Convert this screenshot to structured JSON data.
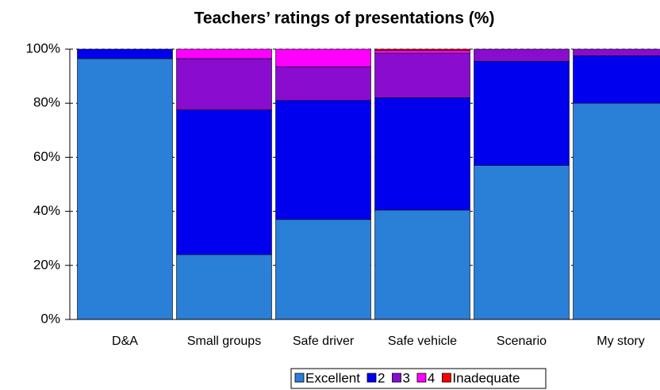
{
  "chart_data": {
    "type": "stacked_bar",
    "title": "Teachers’ ratings of presentations (%)",
    "categories": [
      "D&A",
      "Small groups",
      "Safe driver",
      "Safe vehicle",
      "Scenario",
      "My story"
    ],
    "series": [
      {
        "name": "Excellent",
        "color": "#2a7fd6",
        "values": [
          96.5,
          24,
          37,
          40.5,
          57,
          80
        ]
      },
      {
        "name": "2",
        "color": "#0000ee",
        "values": [
          3.5,
          53.5,
          44,
          41.5,
          38.5,
          17.5
        ]
      },
      {
        "name": "3",
        "color": "#8a0ccf",
        "values": [
          0,
          19,
          12.5,
          16.5,
          4.5,
          2.5
        ]
      },
      {
        "name": "4",
        "color": "#ff00ff",
        "values": [
          0,
          3.5,
          6.5,
          1,
          0,
          0
        ]
      },
      {
        "name": "Inadequate",
        "color": "#ff0000",
        "values": [
          0,
          0,
          0,
          0.5,
          0,
          0
        ]
      }
    ],
    "ylim": [
      0,
      100
    ],
    "yticks": [
      {
        "value": 0,
        "label": "0%"
      },
      {
        "value": 20,
        "label": "20%"
      },
      {
        "value": 40,
        "label": "40%"
      },
      {
        "value": 60,
        "label": "60%"
      },
      {
        "value": 80,
        "label": "80%"
      },
      {
        "value": 100,
        "label": "100%"
      }
    ],
    "grid": true
  }
}
